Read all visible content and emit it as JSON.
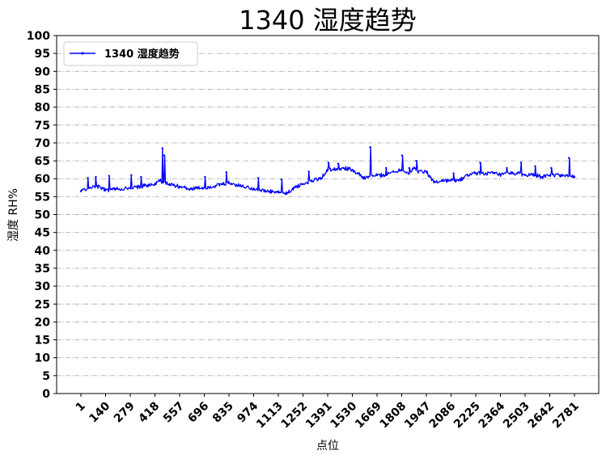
{
  "chart_data": {
    "type": "line",
    "title": "1340 湿度趋势",
    "xlabel": "点位",
    "ylabel": "湿度 RH%",
    "xlim": [
      1,
      2781
    ],
    "ylim": [
      0,
      100
    ],
    "y_ticks": [
      0,
      5,
      10,
      15,
      20,
      25,
      30,
      35,
      40,
      45,
      50,
      55,
      60,
      65,
      70,
      75,
      80,
      85,
      90,
      95,
      100
    ],
    "x_ticks": [
      1,
      140,
      279,
      418,
      557,
      696,
      835,
      974,
      1113,
      1252,
      1391,
      1530,
      1669,
      1808,
      1947,
      2086,
      2225,
      2364,
      2503,
      2642,
      2781
    ],
    "grid": "horizontal dash-dot",
    "legend": "top-left",
    "series": [
      {
        "name": "1340 湿度趋势",
        "color": "#0000ff",
        "x": [
          1,
          50,
          90,
          140,
          200,
          279,
          330,
          380,
          418,
          445,
          460,
          500,
          557,
          620,
          696,
          760,
          835,
          900,
          974,
          1040,
          1113,
          1160,
          1200,
          1252,
          1300,
          1350,
          1391,
          1430,
          1480,
          1530,
          1560,
          1600,
          1620,
          1669,
          1720,
          1760,
          1808,
          1850,
          1880,
          1900,
          1947,
          1990,
          2040,
          2086,
          2130,
          2180,
          2225,
          2280,
          2330,
          2364,
          2420,
          2460,
          2503,
          2560,
          2600,
          2642,
          2700,
          2740,
          2781
        ],
        "y": [
          56.5,
          57.5,
          58,
          56.8,
          57.2,
          57.3,
          57.8,
          58.2,
          58.5,
          59.5,
          59,
          58.5,
          57.8,
          57.2,
          57.5,
          58,
          58.8,
          58,
          57.3,
          56.5,
          56.2,
          55.8,
          57.5,
          58.5,
          59.5,
          60,
          62.5,
          62.8,
          63,
          62.5,
          61.5,
          60,
          60.5,
          61,
          61,
          62,
          62.5,
          61.5,
          63,
          62,
          62,
          59,
          59.5,
          59.5,
          59.5,
          61,
          61.5,
          61.5,
          61.5,
          61,
          61.5,
          61.5,
          61,
          61,
          60.5,
          61,
          61,
          61,
          60.5
        ],
        "spikes": [
          {
            "x": 40,
            "y": 60.2
          },
          {
            "x": 85,
            "y": 60.5
          },
          {
            "x": 160,
            "y": 60.8
          },
          {
            "x": 285,
            "y": 61
          },
          {
            "x": 340,
            "y": 60.5
          },
          {
            "x": 460,
            "y": 68.5
          },
          {
            "x": 470,
            "y": 66.5
          },
          {
            "x": 700,
            "y": 60.5
          },
          {
            "x": 820,
            "y": 61.8
          },
          {
            "x": 1000,
            "y": 60.2
          },
          {
            "x": 1130,
            "y": 59.8
          },
          {
            "x": 1285,
            "y": 62
          },
          {
            "x": 1395,
            "y": 64.5
          },
          {
            "x": 1450,
            "y": 64.2
          },
          {
            "x": 1630,
            "y": 68.8
          },
          {
            "x": 1720,
            "y": 63
          },
          {
            "x": 1810,
            "y": 66.5
          },
          {
            "x": 1850,
            "y": 63
          },
          {
            "x": 1890,
            "y": 65
          },
          {
            "x": 1950,
            "y": 62
          },
          {
            "x": 2100,
            "y": 61.5
          },
          {
            "x": 2250,
            "y": 64.5
          },
          {
            "x": 2400,
            "y": 63
          },
          {
            "x": 2480,
            "y": 64.5
          },
          {
            "x": 2560,
            "y": 63.5
          },
          {
            "x": 2650,
            "y": 63
          },
          {
            "x": 2750,
            "y": 65.8
          }
        ]
      }
    ]
  }
}
